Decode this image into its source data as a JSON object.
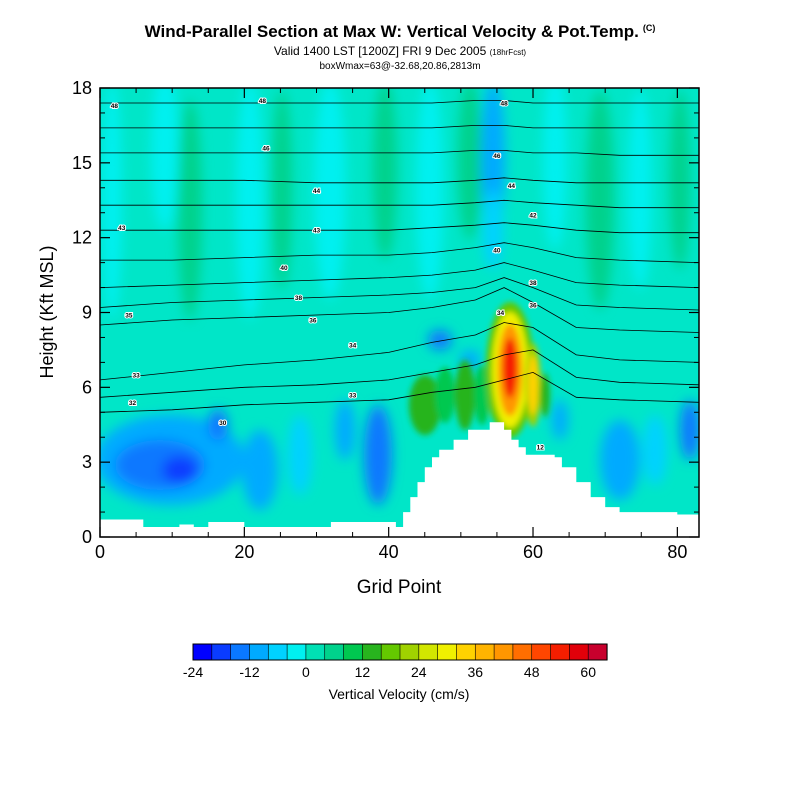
{
  "chart_data": {
    "type": "heatmap",
    "title": "Wind-Parallel Section at Max W: Vertical Velocity & Pot.Temp.",
    "title_mark": "(C)",
    "subtitle_main": "Valid 1400 LST [1200Z] FRI 9 Dec 2005",
    "subtitle_small": "(18hrFcst)",
    "subtitle2": "boxWmax=63@-32.68,20.86,2813m",
    "xlabel": "Grid Point",
    "ylabel": "Height (Kft MSL)",
    "xlim": [
      0,
      83
    ],
    "ylim": [
      0,
      18
    ],
    "xticks": [
      "0",
      "20",
      "40",
      "60",
      "80"
    ],
    "yticks": [
      "0",
      "3",
      "6",
      "9",
      "12",
      "15",
      "18"
    ],
    "colorbar": {
      "label": "Vertical Velocity (cm/s)",
      "ticks": [
        "-24",
        "-12",
        "0",
        "12",
        "24",
        "36",
        "48",
        "60"
      ],
      "colors": [
        "#0000ff",
        "#0a3cff",
        "#0a78ff",
        "#00aaff",
        "#00d2ff",
        "#00f0f0",
        "#00e0b4",
        "#00d28c",
        "#00c850",
        "#28b41e",
        "#64c800",
        "#a0d200",
        "#d2e600",
        "#f0f000",
        "#ffd200",
        "#ffb400",
        "#ff9600",
        "#ff6e00",
        "#ff4600",
        "#f51e00",
        "#e1000a",
        "#c8002d"
      ]
    },
    "terrain_kft": [
      [
        0,
        0.7
      ],
      [
        5,
        0.7
      ],
      [
        6,
        0.4
      ],
      [
        10,
        0.4
      ],
      [
        11,
        0.5
      ],
      [
        13,
        0.4
      ],
      [
        15,
        0.6
      ],
      [
        19,
        0.6
      ],
      [
        20,
        0.4
      ],
      [
        31,
        0.4
      ],
      [
        32,
        0.6
      ],
      [
        40,
        0.6
      ],
      [
        41,
        0.4
      ],
      [
        42,
        1.0
      ],
      [
        43,
        1.6
      ],
      [
        44,
        2.2
      ],
      [
        45,
        2.8
      ],
      [
        46,
        3.2
      ],
      [
        47,
        3.5
      ],
      [
        49,
        3.9
      ],
      [
        51,
        4.3
      ],
      [
        53,
        4.3
      ],
      [
        54,
        4.6
      ],
      [
        56,
        4.3
      ],
      [
        57,
        3.9
      ],
      [
        58,
        3.6
      ],
      [
        59,
        3.3
      ],
      [
        61,
        3.3
      ],
      [
        63,
        3.2
      ],
      [
        64,
        2.8
      ],
      [
        66,
        2.2
      ],
      [
        68,
        1.6
      ],
      [
        70,
        1.2
      ],
      [
        72,
        1.0
      ],
      [
        75,
        1.0
      ],
      [
        78,
        1.0
      ],
      [
        80,
        0.9
      ],
      [
        83,
        0.9
      ]
    ],
    "theta_contours": [
      {
        "label": "32",
        "x": [
          0,
          10,
          20,
          30,
          40,
          46,
          52,
          56,
          60,
          66,
          72,
          83
        ],
        "y": [
          5.0,
          5.1,
          5.3,
          5.4,
          5.5,
          5.8,
          6.0,
          6.3,
          6.6,
          5.6,
          5.5,
          5.4
        ]
      },
      {
        "label": "33",
        "x": [
          0,
          10,
          20,
          30,
          40,
          46,
          52,
          56,
          60,
          66,
          72,
          83
        ],
        "y": [
          5.6,
          5.8,
          6.0,
          6.1,
          6.3,
          6.6,
          6.9,
          7.3,
          7.5,
          6.4,
          6.2,
          6.1
        ]
      },
      {
        "label": "34",
        "x": [
          0,
          10,
          20,
          30,
          40,
          46,
          52,
          56,
          60,
          66,
          72,
          83
        ],
        "y": [
          6.3,
          6.6,
          6.9,
          7.1,
          7.4,
          7.8,
          8.1,
          8.6,
          8.4,
          7.3,
          7.1,
          7.0
        ]
      },
      {
        "label": "35",
        "x": [
          0,
          10,
          20,
          30,
          40,
          46,
          52,
          56,
          60,
          66,
          72,
          83
        ],
        "y": [
          8.5,
          8.7,
          8.8,
          8.9,
          9.0,
          9.2,
          9.5,
          10.0,
          9.4,
          8.4,
          8.3,
          8.2
        ]
      },
      {
        "label": "36",
        "x": [
          0,
          10,
          20,
          30,
          40,
          46,
          52,
          56,
          60,
          66,
          72,
          83
        ],
        "y": [
          9.2,
          9.4,
          9.5,
          9.6,
          9.7,
          9.8,
          10.0,
          10.4,
          10.0,
          9.3,
          9.2,
          9.1
        ]
      },
      {
        "label": "38",
        "x": [
          0,
          10,
          20,
          30,
          40,
          46,
          52,
          56,
          60,
          66,
          72,
          83
        ],
        "y": [
          10.0,
          10.1,
          10.2,
          10.3,
          10.4,
          10.5,
          10.7,
          11.0,
          10.7,
          10.2,
          10.1,
          10.0
        ]
      },
      {
        "label": "40",
        "x": [
          0,
          10,
          20,
          30,
          40,
          46,
          52,
          56,
          60,
          66,
          72,
          83
        ],
        "y": [
          11.1,
          11.1,
          11.2,
          11.3,
          11.3,
          11.4,
          11.6,
          11.8,
          11.6,
          11.2,
          11.1,
          11.0
        ]
      },
      {
        "label": "42",
        "x": [
          0,
          10,
          20,
          30,
          40,
          46,
          52,
          56,
          60,
          66,
          72,
          83
        ],
        "y": [
          12.3,
          12.3,
          12.3,
          12.3,
          12.3,
          12.4,
          12.5,
          12.6,
          12.5,
          12.3,
          12.2,
          12.2
        ]
      },
      {
        "label": "43",
        "x": [
          0,
          10,
          20,
          30,
          40,
          46,
          52,
          56,
          60,
          66,
          72,
          83
        ],
        "y": [
          13.3,
          13.3,
          13.3,
          13.3,
          13.3,
          13.3,
          13.4,
          13.5,
          13.4,
          13.3,
          13.2,
          13.2
        ]
      },
      {
        "label": "44",
        "x": [
          0,
          10,
          20,
          30,
          40,
          46,
          52,
          56,
          60,
          66,
          72,
          83
        ],
        "y": [
          14.3,
          14.3,
          14.3,
          14.2,
          14.2,
          14.2,
          14.3,
          14.4,
          14.3,
          14.2,
          14.2,
          14.2
        ]
      },
      {
        "label": "45",
        "x": [
          0,
          10,
          20,
          30,
          40,
          46,
          52,
          56,
          60,
          66,
          72,
          83
        ],
        "y": [
          15.4,
          15.4,
          15.4,
          15.4,
          15.4,
          15.4,
          15.5,
          15.5,
          15.4,
          15.4,
          15.3,
          15.3
        ]
      },
      {
        "label": "46",
        "x": [
          0,
          10,
          20,
          30,
          40,
          46,
          52,
          56,
          60,
          66,
          72,
          83
        ],
        "y": [
          16.4,
          16.4,
          16.4,
          16.4,
          16.4,
          16.4,
          16.5,
          16.5,
          16.4,
          16.4,
          16.4,
          16.4
        ]
      },
      {
        "label": "48",
        "x": [
          0,
          10,
          20,
          30,
          40,
          46,
          52,
          56,
          60,
          66,
          72,
          83
        ],
        "y": [
          17.4,
          17.4,
          17.4,
          17.4,
          17.4,
          17.4,
          17.5,
          17.5,
          17.4,
          17.4,
          17.4,
          17.4
        ]
      }
    ],
    "contour_labels": [
      {
        "text": "48",
        "x": 2,
        "y": 17.3
      },
      {
        "text": "48",
        "x": 22.5,
        "y": 17.5
      },
      {
        "text": "48",
        "x": 56,
        "y": 17.4
      },
      {
        "text": "46",
        "x": 23,
        "y": 15.6
      },
      {
        "text": "46",
        "x": 55,
        "y": 15.3
      },
      {
        "text": "44",
        "x": 30,
        "y": 13.9
      },
      {
        "text": "44",
        "x": 57,
        "y": 14.1
      },
      {
        "text": "43",
        "x": 3,
        "y": 12.4
      },
      {
        "text": "43",
        "x": 30,
        "y": 12.3
      },
      {
        "text": "42",
        "x": 60,
        "y": 12.9
      },
      {
        "text": "40",
        "x": 25.5,
        "y": 10.8
      },
      {
        "text": "40",
        "x": 55,
        "y": 11.5
      },
      {
        "text": "38",
        "x": 27.5,
        "y": 9.6
      },
      {
        "text": "38",
        "x": 60,
        "y": 10.2
      },
      {
        "text": "35",
        "x": 4,
        "y": 8.9
      },
      {
        "text": "36",
        "x": 29.5,
        "y": 8.7
      },
      {
        "text": "36",
        "x": 60,
        "y": 9.3
      },
      {
        "text": "34",
        "x": 35,
        "y": 7.7
      },
      {
        "text": "34",
        "x": 55.5,
        "y": 9.0
      },
      {
        "text": "33",
        "x": 5,
        "y": 6.5
      },
      {
        "text": "32",
        "x": 4.5,
        "y": 5.4
      },
      {
        "text": "33",
        "x": 35,
        "y": 5.7
      },
      {
        "text": "30",
        "x": 17,
        "y": 4.6
      },
      {
        "text": "12",
        "x": 61,
        "y": 3.6
      }
    ]
  }
}
